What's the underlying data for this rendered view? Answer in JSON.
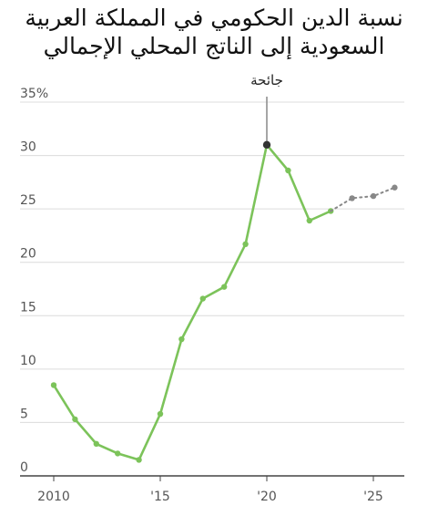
{
  "chart_data": {
    "type": "line",
    "title": "نسبة الدين الحكومي في المملكة العربية السعودية إلى الناتج المحلي الإجمالي",
    "xlabel": "",
    "ylabel": "",
    "xlim": [
      2010,
      2026
    ],
    "ylim": [
      0,
      35
    ],
    "y_ticks": [
      {
        "value": 35,
        "label": "35%"
      },
      {
        "value": 30,
        "label": "30"
      },
      {
        "value": 25,
        "label": "25"
      },
      {
        "value": 20,
        "label": "20"
      },
      {
        "value": 15,
        "label": "15"
      },
      {
        "value": 10,
        "label": "10"
      },
      {
        "value": 5,
        "label": "5"
      },
      {
        "value": 0,
        "label": "0"
      }
    ],
    "x_ticks": [
      {
        "value": 2010,
        "label": "2010"
      },
      {
        "value": 2015,
        "label": "'15"
      },
      {
        "value": 2020,
        "label": "'20"
      },
      {
        "value": 2025,
        "label": "'25"
      }
    ],
    "grid": true,
    "series": [
      {
        "name": "",
        "style": "solid",
        "color": "#7cc35a",
        "x": [
          2010,
          2011,
          2012,
          2013,
          2014,
          2015,
          2016,
          2017,
          2018,
          2019,
          2020,
          2021,
          2022,
          2023
        ],
        "y": [
          8.5,
          5.3,
          3.0,
          2.1,
          1.5,
          5.8,
          12.8,
          16.6,
          17.7,
          21.7,
          31.0,
          28.6,
          23.9,
          24.8
        ]
      },
      {
        "name": "",
        "style": "dotted",
        "color": "#888888",
        "x": [
          2023,
          2024,
          2025,
          2026
        ],
        "y": [
          24.8,
          26.0,
          26.2,
          27.0
        ]
      }
    ],
    "annotations": [
      {
        "text": "جائحة",
        "x": 2020,
        "y": 31.0,
        "marker_color": "#333333"
      }
    ]
  }
}
